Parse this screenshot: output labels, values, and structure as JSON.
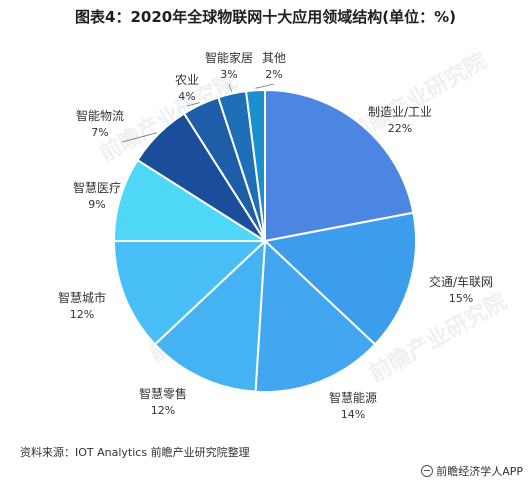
{
  "chart_data": {
    "type": "pie",
    "title": "图表4：2020年全球物联网十大应用领域结构(单位：%)",
    "slices": [
      {
        "label": "制造业/工业",
        "value": 22,
        "pct_text": "22%",
        "color": "#4c86e2"
      },
      {
        "label": "交通/车联网",
        "value": 15,
        "pct_text": "15%",
        "color": "#3d9ded"
      },
      {
        "label": "智慧能源",
        "value": 14,
        "pct_text": "14%",
        "color": "#42a7f0"
      },
      {
        "label": "智慧零售",
        "value": 12,
        "pct_text": "12%",
        "color": "#45b2f4"
      },
      {
        "label": "智慧城市",
        "value": 12,
        "pct_text": "12%",
        "color": "#48bff6"
      },
      {
        "label": "智慧医疗",
        "value": 9,
        "pct_text": "9%",
        "color": "#4fd7f8"
      },
      {
        "label": "智能物流",
        "value": 7,
        "pct_text": "7%",
        "color": "#1a4d9a"
      },
      {
        "label": "农业",
        "value": 4,
        "pct_text": "4%",
        "color": "#1e5ea9"
      },
      {
        "label": "智能家居",
        "value": 3,
        "pct_text": "3%",
        "color": "#1f6fb8"
      },
      {
        "label": "其他",
        "value": 2,
        "pct_text": "2%",
        "color": "#1d8fd0"
      }
    ]
  },
  "footer": {
    "source": "资料来源：IOT Analytics 前瞻产业研究院整理",
    "brand": "前瞻经济学人APP"
  },
  "watermark": "前瞻产业研究院"
}
